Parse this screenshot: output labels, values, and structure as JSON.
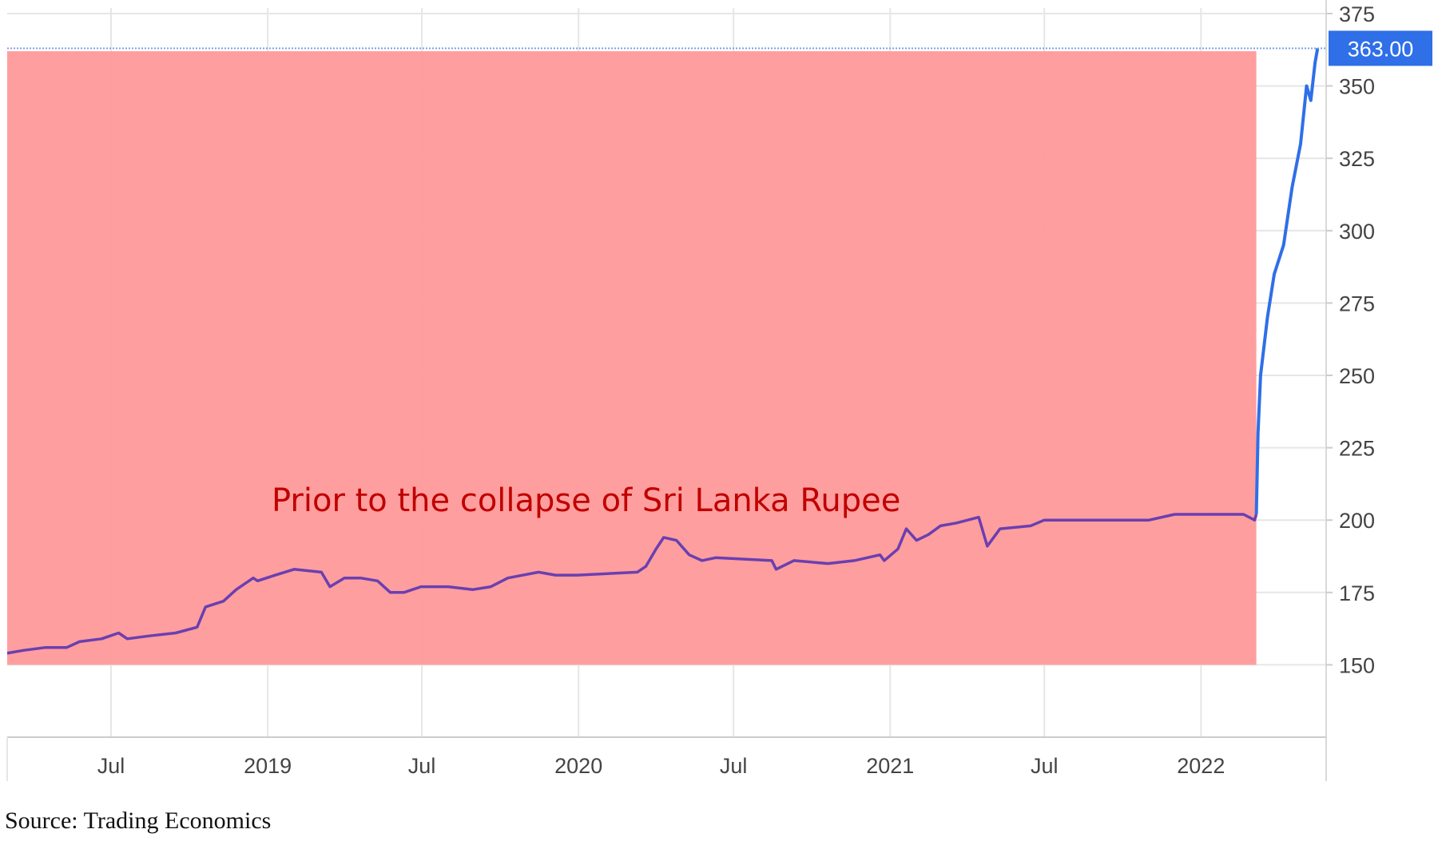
{
  "chart_data": {
    "type": "line",
    "title": "",
    "xlabel": "",
    "ylabel": "",
    "ylim": [
      125,
      375
    ],
    "yticks": [
      150,
      175,
      200,
      225,
      250,
      275,
      300,
      325,
      350,
      375
    ],
    "xlim": [
      "2018-03-01",
      "2022-05-28"
    ],
    "xticks": [
      {
        "date": "2018-07-01",
        "label": "Jul"
      },
      {
        "date": "2019-01-01",
        "label": "2019"
      },
      {
        "date": "2019-07-01",
        "label": "Jul"
      },
      {
        "date": "2020-01-01",
        "label": "2020"
      },
      {
        "date": "2020-07-01",
        "label": "Jul"
      },
      {
        "date": "2021-01-01",
        "label": "2021"
      },
      {
        "date": "2021-07-01",
        "label": "Jul"
      },
      {
        "date": "2022-01-01",
        "label": "2022"
      }
    ],
    "grid": true,
    "last_value_label": "363.00",
    "annotation": "Prior to the collapse of Sri Lanka Rupee",
    "highlight_region": {
      "x_start": "2018-03-01",
      "x_end": "2022-03-07",
      "y_start": 150,
      "y_end": 362,
      "color": "#ff9999"
    },
    "series": [
      {
        "color_before": "#6a3fb0",
        "color_after": "#2f6fe8",
        "points": [
          [
            "2018-03-01",
            154
          ],
          [
            "2018-03-20",
            155
          ],
          [
            "2018-04-15",
            156
          ],
          [
            "2018-05-10",
            156
          ],
          [
            "2018-05-25",
            158
          ],
          [
            "2018-06-20",
            159
          ],
          [
            "2018-07-10",
            161
          ],
          [
            "2018-07-20",
            159
          ],
          [
            "2018-08-15",
            160
          ],
          [
            "2018-09-15",
            161
          ],
          [
            "2018-10-10",
            163
          ],
          [
            "2018-10-20",
            170
          ],
          [
            "2018-11-10",
            172
          ],
          [
            "2018-11-25",
            176
          ],
          [
            "2018-12-15",
            180
          ],
          [
            "2018-12-20",
            179
          ],
          [
            "2019-01-10",
            181
          ],
          [
            "2019-02-01",
            183
          ],
          [
            "2019-03-05",
            182
          ],
          [
            "2019-03-15",
            177
          ],
          [
            "2019-04-01",
            180
          ],
          [
            "2019-04-20",
            180
          ],
          [
            "2019-05-10",
            179
          ],
          [
            "2019-05-25",
            175
          ],
          [
            "2019-06-10",
            175
          ],
          [
            "2019-06-30",
            177
          ],
          [
            "2019-08-01",
            177
          ],
          [
            "2019-08-30",
            176
          ],
          [
            "2019-09-20",
            177
          ],
          [
            "2019-10-10",
            180
          ],
          [
            "2019-11-15",
            182
          ],
          [
            "2019-12-05",
            181
          ],
          [
            "2019-12-31",
            181
          ],
          [
            "2020-03-10",
            182
          ],
          [
            "2020-03-20",
            184
          ],
          [
            "2020-04-01",
            190
          ],
          [
            "2020-04-10",
            194
          ],
          [
            "2020-04-25",
            193
          ],
          [
            "2020-05-10",
            188
          ],
          [
            "2020-05-25",
            186
          ],
          [
            "2020-06-10",
            187
          ],
          [
            "2020-08-15",
            186
          ],
          [
            "2020-08-20",
            183
          ],
          [
            "2020-09-10",
            186
          ],
          [
            "2020-10-20",
            185
          ],
          [
            "2020-11-20",
            186
          ],
          [
            "2020-12-20",
            188
          ],
          [
            "2020-12-25",
            186
          ],
          [
            "2021-01-10",
            190
          ],
          [
            "2021-01-20",
            197
          ],
          [
            "2021-02-01",
            193
          ],
          [
            "2021-02-15",
            195
          ],
          [
            "2021-03-01",
            198
          ],
          [
            "2021-03-20",
            199
          ],
          [
            "2021-04-15",
            201
          ],
          [
            "2021-04-25",
            191
          ],
          [
            "2021-05-10",
            197
          ],
          [
            "2021-06-15",
            198
          ],
          [
            "2021-07-01",
            200
          ],
          [
            "2021-09-01",
            200
          ],
          [
            "2021-11-01",
            200
          ],
          [
            "2021-12-01",
            202
          ],
          [
            "2022-01-15",
            202
          ],
          [
            "2022-02-20",
            202
          ],
          [
            "2022-03-05",
            200
          ],
          [
            "2022-03-07",
            202
          ],
          [
            "2022-03-09",
            230
          ],
          [
            "2022-03-12",
            250
          ],
          [
            "2022-03-20",
            270
          ],
          [
            "2022-03-28",
            285
          ],
          [
            "2022-04-08",
            295
          ],
          [
            "2022-04-18",
            315
          ],
          [
            "2022-04-28",
            330
          ],
          [
            "2022-05-05",
            350
          ],
          [
            "2022-05-10",
            345
          ],
          [
            "2022-05-15",
            358
          ],
          [
            "2022-05-18",
            363
          ]
        ]
      }
    ]
  },
  "source": "Source: Trading Economics"
}
